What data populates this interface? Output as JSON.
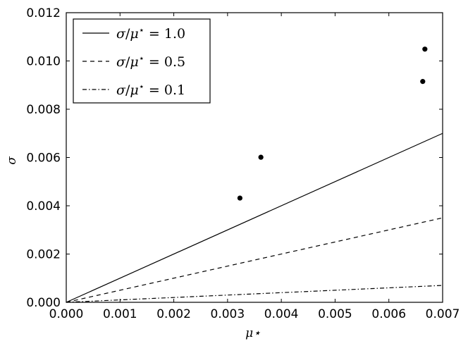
{
  "chart_data": {
    "type": "scatter",
    "xlabel": "μ⋆",
    "ylabel": "σ",
    "xlim": [
      0,
      0.007
    ],
    "ylim": [
      0,
      0.012
    ],
    "x_ticks": [
      0,
      0.001,
      0.002,
      0.003,
      0.004,
      0.005,
      0.006,
      0.007
    ],
    "y_ticks": [
      0,
      0.002,
      0.004,
      0.006,
      0.008,
      0.01,
      0.012
    ],
    "x_tick_labels": [
      "0.000",
      "0.001",
      "0.002",
      "0.003",
      "0.004",
      "0.005",
      "0.006",
      "0.007"
    ],
    "y_tick_labels": [
      "0.000",
      "0.002",
      "0.004",
      "0.006",
      "0.008",
      "0.010",
      "0.012"
    ],
    "grid": false,
    "legend_position": "top-left",
    "points": [
      {
        "x": 0.00323,
        "y": 0.00432
      },
      {
        "x": 0.00362,
        "y": 0.00601
      },
      {
        "x": 0.00663,
        "y": 0.00915
      },
      {
        "x": 0.00667,
        "y": 0.01049
      }
    ],
    "lines": [
      {
        "style": "solid",
        "ratio_value": "1.0",
        "slope": 1.0,
        "color": "#000000"
      },
      {
        "style": "dashed",
        "ratio_value": "0.5",
        "slope": 0.5,
        "color": "#000000"
      },
      {
        "style": "dashdot",
        "ratio_value": "0.1",
        "slope": 0.1,
        "color": "#000000"
      }
    ]
  }
}
